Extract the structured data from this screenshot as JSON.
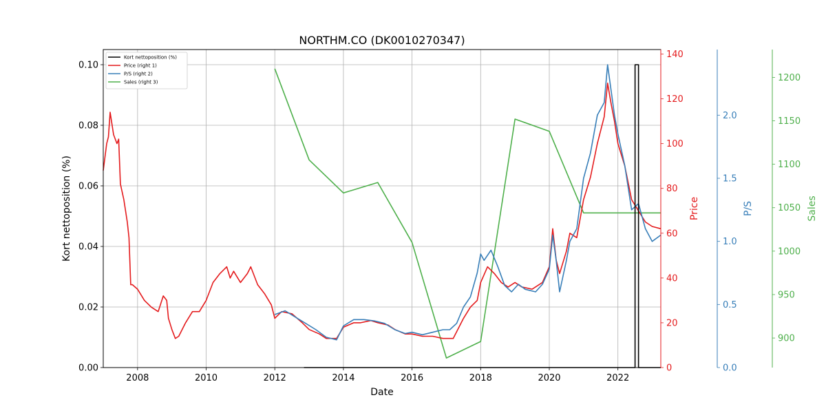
{
  "chart_data": {
    "type": "line",
    "title": "NORTHM.CO (DK0010270347)",
    "xlabel": "Date",
    "ylabel": "Kort nettoposition (%)",
    "xlim": [
      2007.0,
      2023.25
    ],
    "x_ticks": [
      2008,
      2010,
      2012,
      2014,
      2016,
      2018,
      2020,
      2022
    ],
    "grid": true,
    "legend_placement": "top-left",
    "axes": {
      "left": {
        "label": "Kort nettoposition (%)",
        "ylim": [
          0,
          0.105
        ],
        "ticks": [
          "0.00",
          "0.02",
          "0.04",
          "0.06",
          "0.08",
          "0.10"
        ],
        "color": "#000000"
      },
      "right1": {
        "label": "Price",
        "ylim": [
          0,
          142
        ],
        "ticks": [
          "0",
          "20",
          "40",
          "60",
          "80",
          "100",
          "120",
          "140"
        ],
        "color": "#e41a1c"
      },
      "right2": {
        "label": "P/S",
        "ylim": [
          0,
          2.52
        ],
        "ticks": [
          "0.0",
          "0.5",
          "1.0",
          "1.5",
          "2.0"
        ],
        "color": "#377eb8"
      },
      "right3": {
        "label": "Sales",
        "ylim": [
          866,
          1232
        ],
        "ticks": [
          "900",
          "950",
          "1000",
          "1050",
          "1100",
          "1150",
          "1200"
        ],
        "color": "#4daf4a"
      }
    },
    "series": [
      {
        "name": "Kort nettoposition (%)",
        "axis": "left",
        "color": "#000000",
        "points": [
          [
            2012.85,
            0
          ],
          [
            2022.5,
            0
          ],
          [
            2022.5,
            0.1
          ],
          [
            2022.6,
            0.1
          ],
          [
            2022.6,
            0
          ],
          [
            2023.25,
            0
          ]
        ]
      },
      {
        "name": "Price (right 1)",
        "axis": "right1",
        "color": "#e41a1c",
        "points": [
          [
            2007.0,
            88
          ],
          [
            2007.1,
            100
          ],
          [
            2007.15,
            103
          ],
          [
            2007.2,
            114
          ],
          [
            2007.3,
            104
          ],
          [
            2007.4,
            100
          ],
          [
            2007.45,
            102
          ],
          [
            2007.5,
            82
          ],
          [
            2007.6,
            75
          ],
          [
            2007.7,
            65
          ],
          [
            2007.75,
            58
          ],
          [
            2007.8,
            37
          ],
          [
            2007.85,
            37
          ],
          [
            2008.0,
            35
          ],
          [
            2008.2,
            30
          ],
          [
            2008.4,
            27
          ],
          [
            2008.6,
            25
          ],
          [
            2008.75,
            32
          ],
          [
            2008.85,
            30
          ],
          [
            2008.9,
            22
          ],
          [
            2009.0,
            17
          ],
          [
            2009.1,
            13
          ],
          [
            2009.2,
            14
          ],
          [
            2009.4,
            20
          ],
          [
            2009.6,
            25
          ],
          [
            2009.8,
            25
          ],
          [
            2010.0,
            30
          ],
          [
            2010.2,
            38
          ],
          [
            2010.4,
            42
          ],
          [
            2010.6,
            45
          ],
          [
            2010.7,
            40
          ],
          [
            2010.8,
            43
          ],
          [
            2011.0,
            38
          ],
          [
            2011.2,
            42
          ],
          [
            2011.3,
            45
          ],
          [
            2011.5,
            37
          ],
          [
            2011.7,
            33
          ],
          [
            2011.9,
            28
          ],
          [
            2012.0,
            22
          ],
          [
            2012.2,
            25
          ],
          [
            2012.5,
            24
          ],
          [
            2012.8,
            20
          ],
          [
            2013.0,
            17
          ],
          [
            2013.3,
            15
          ],
          [
            2013.5,
            13
          ],
          [
            2013.8,
            13
          ],
          [
            2014.0,
            18
          ],
          [
            2014.3,
            20
          ],
          [
            2014.5,
            20
          ],
          [
            2014.8,
            21
          ],
          [
            2015.0,
            20
          ],
          [
            2015.3,
            19
          ],
          [
            2015.5,
            17
          ],
          [
            2015.8,
            15
          ],
          [
            2016.0,
            15
          ],
          [
            2016.3,
            14
          ],
          [
            2016.6,
            14
          ],
          [
            2016.9,
            13
          ],
          [
            2017.2,
            13
          ],
          [
            2017.5,
            22
          ],
          [
            2017.7,
            27
          ],
          [
            2017.9,
            30
          ],
          [
            2018.0,
            38
          ],
          [
            2018.2,
            45
          ],
          [
            2018.4,
            42
          ],
          [
            2018.6,
            38
          ],
          [
            2018.8,
            36
          ],
          [
            2019.0,
            38
          ],
          [
            2019.2,
            36
          ],
          [
            2019.5,
            35
          ],
          [
            2019.8,
            38
          ],
          [
            2020.0,
            45
          ],
          [
            2020.1,
            62
          ],
          [
            2020.2,
            48
          ],
          [
            2020.3,
            42
          ],
          [
            2020.5,
            52
          ],
          [
            2020.6,
            60
          ],
          [
            2020.8,
            58
          ],
          [
            2021.0,
            75
          ],
          [
            2021.2,
            85
          ],
          [
            2021.4,
            100
          ],
          [
            2021.6,
            112
          ],
          [
            2021.7,
            127
          ],
          [
            2021.8,
            118
          ],
          [
            2021.9,
            110
          ],
          [
            2022.0,
            100
          ],
          [
            2022.2,
            90
          ],
          [
            2022.4,
            75
          ],
          [
            2022.6,
            70
          ],
          [
            2022.8,
            65
          ],
          [
            2023.0,
            63
          ],
          [
            2023.25,
            62
          ]
        ]
      },
      {
        "name": "P/S (right 2)",
        "axis": "right2",
        "color": "#377eb8",
        "points": [
          [
            2012.0,
            0.42
          ],
          [
            2012.3,
            0.45
          ],
          [
            2012.6,
            0.4
          ],
          [
            2012.9,
            0.35
          ],
          [
            2013.2,
            0.3
          ],
          [
            2013.5,
            0.24
          ],
          [
            2013.8,
            0.22
          ],
          [
            2014.0,
            0.33
          ],
          [
            2014.3,
            0.38
          ],
          [
            2014.6,
            0.38
          ],
          [
            2014.9,
            0.37
          ],
          [
            2015.2,
            0.35
          ],
          [
            2015.5,
            0.3
          ],
          [
            2015.8,
            0.27
          ],
          [
            2016.0,
            0.28
          ],
          [
            2016.3,
            0.26
          ],
          [
            2016.6,
            0.28
          ],
          [
            2016.9,
            0.3
          ],
          [
            2017.1,
            0.3
          ],
          [
            2017.3,
            0.35
          ],
          [
            2017.5,
            0.48
          ],
          [
            2017.7,
            0.56
          ],
          [
            2017.9,
            0.75
          ],
          [
            2018.0,
            0.9
          ],
          [
            2018.1,
            0.85
          ],
          [
            2018.3,
            0.93
          ],
          [
            2018.5,
            0.8
          ],
          [
            2018.7,
            0.65
          ],
          [
            2018.9,
            0.6
          ],
          [
            2019.1,
            0.66
          ],
          [
            2019.3,
            0.62
          ],
          [
            2019.6,
            0.6
          ],
          [
            2019.8,
            0.66
          ],
          [
            2020.0,
            0.78
          ],
          [
            2020.1,
            1.05
          ],
          [
            2020.2,
            0.85
          ],
          [
            2020.3,
            0.6
          ],
          [
            2020.5,
            0.85
          ],
          [
            2020.6,
            1.0
          ],
          [
            2020.8,
            1.1
          ],
          [
            2021.0,
            1.5
          ],
          [
            2021.2,
            1.7
          ],
          [
            2021.4,
            2.0
          ],
          [
            2021.6,
            2.1
          ],
          [
            2021.7,
            2.4
          ],
          [
            2021.8,
            2.2
          ],
          [
            2021.9,
            2.0
          ],
          [
            2022.0,
            1.85
          ],
          [
            2022.2,
            1.6
          ],
          [
            2022.4,
            1.25
          ],
          [
            2022.6,
            1.3
          ],
          [
            2022.8,
            1.1
          ],
          [
            2023.0,
            1.0
          ],
          [
            2023.25,
            1.05
          ]
        ]
      },
      {
        "name": "Sales (right 3)",
        "axis": "right3",
        "color": "#4daf4a",
        "points": [
          [
            2012.0,
            1210
          ],
          [
            2013.0,
            1105
          ],
          [
            2014.0,
            1067
          ],
          [
            2015.0,
            1079
          ],
          [
            2016.0,
            1010
          ],
          [
            2017.0,
            877
          ],
          [
            2018.0,
            896
          ],
          [
            2019.0,
            1152
          ],
          [
            2020.0,
            1138
          ],
          [
            2021.0,
            1044
          ],
          [
            2022.0,
            1044
          ],
          [
            2023.25,
            1044
          ]
        ]
      }
    ]
  }
}
